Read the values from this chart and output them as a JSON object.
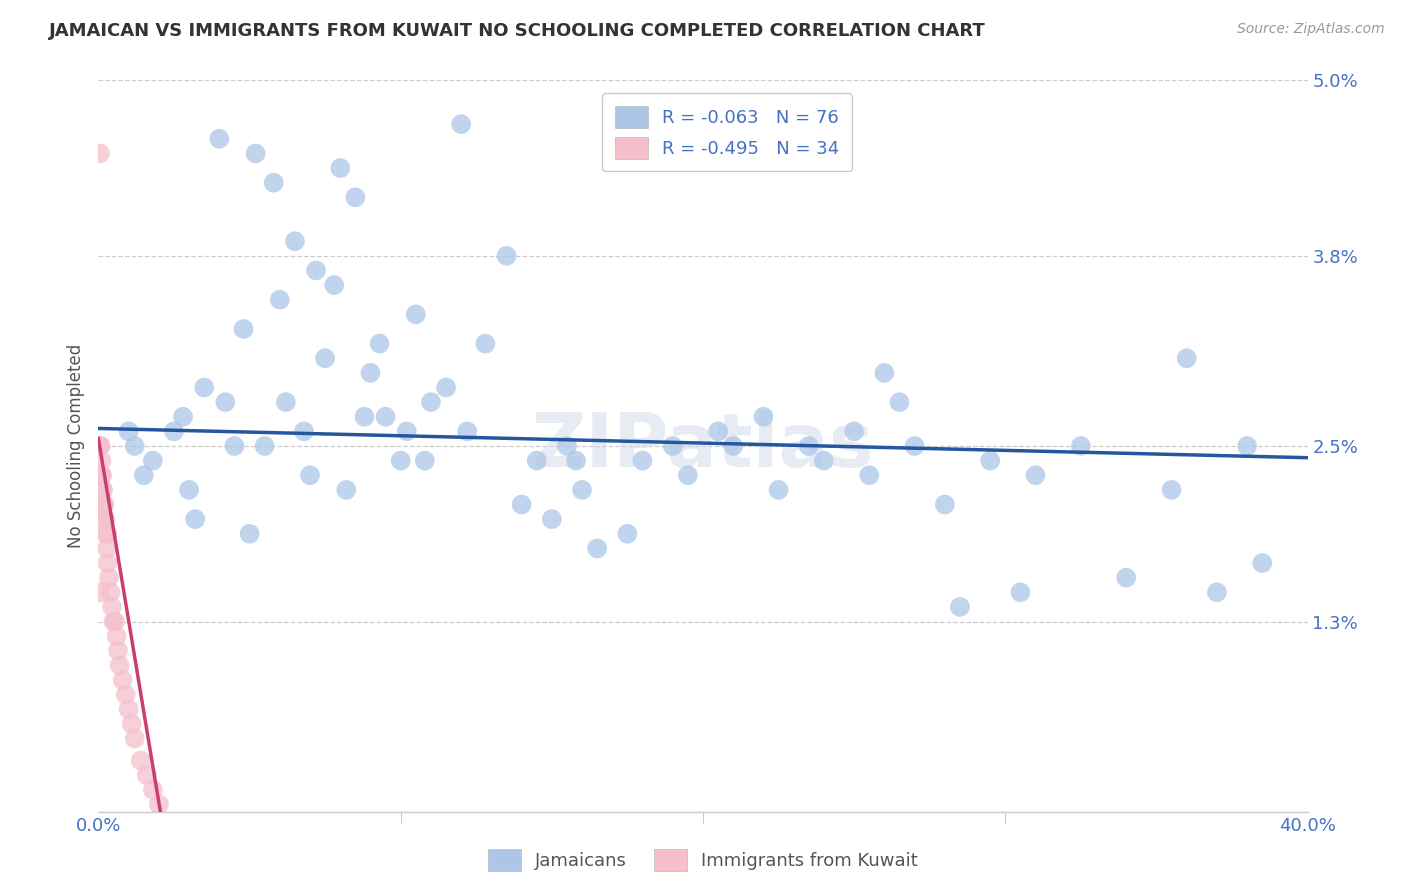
{
  "title": "JAMAICAN VS IMMIGRANTS FROM KUWAIT NO SCHOOLING COMPLETED CORRELATION CHART",
  "source": "Source: ZipAtlas.com",
  "ylabel": "No Schooling Completed",
  "legend1_label": "R = -0.063   N = 76",
  "legend2_label": "R = -0.495   N = 34",
  "legend_label1": "Jamaicans",
  "legend_label2": "Immigrants from Kuwait",
  "blue_color": "#adc6e8",
  "blue_line_color": "#2457a0",
  "pink_color": "#f5bfcc",
  "pink_line_color": "#c94070",
  "legend_text_color": "#4472c4",
  "title_color": "#333333",
  "axis_color": "#4472c4",
  "watermark": "ZIPatlas",
  "xmin": 0.0,
  "xmax": 40.0,
  "ymin": 0.0,
  "ymax": 5.0,
  "ytick_vals": [
    0.0,
    1.3,
    2.5,
    3.8,
    5.0
  ],
  "ytick_labels": [
    "",
    "1.3%",
    "2.5%",
    "3.8%",
    "5.0%"
  ],
  "xtick_vals": [
    0.0,
    40.0
  ],
  "xtick_labels": [
    "0.0%",
    "40.0%"
  ],
  "blue_line_x": [
    0.0,
    40.0
  ],
  "blue_line_y": [
    2.62,
    2.42
  ],
  "pink_line_x": [
    0.0,
    2.05
  ],
  "pink_line_y": [
    2.55,
    0.0
  ],
  "jamaicans_x": [
    1.2,
    2.5,
    4.0,
    5.2,
    5.8,
    6.5,
    7.2,
    8.0,
    8.5,
    9.3,
    1.8,
    3.5,
    4.8,
    6.0,
    7.8,
    9.0,
    10.5,
    11.0,
    12.0,
    13.5,
    1.5,
    2.8,
    4.2,
    5.5,
    6.8,
    7.5,
    8.8,
    10.0,
    11.5,
    12.8,
    1.0,
    3.0,
    4.5,
    6.2,
    7.0,
    9.5,
    10.8,
    12.2,
    14.0,
    15.5,
    14.5,
    16.0,
    17.5,
    19.0,
    20.5,
    22.0,
    23.5,
    25.0,
    26.5,
    28.0,
    15.0,
    16.5,
    18.0,
    19.5,
    21.0,
    22.5,
    24.0,
    25.5,
    27.0,
    29.5,
    31.0,
    32.5,
    34.0,
    35.5,
    37.0,
    38.5,
    3.2,
    5.0,
    8.2,
    10.2,
    15.8,
    26.0,
    36.0,
    38.0,
    28.5,
    30.5
  ],
  "jamaicans_y": [
    2.5,
    2.6,
    4.6,
    4.5,
    4.3,
    3.9,
    3.7,
    4.4,
    4.2,
    3.2,
    2.4,
    2.9,
    3.3,
    3.5,
    3.6,
    3.0,
    3.4,
    2.8,
    4.7,
    3.8,
    2.3,
    2.7,
    2.8,
    2.5,
    2.6,
    3.1,
    2.7,
    2.4,
    2.9,
    3.2,
    2.6,
    2.2,
    2.5,
    2.8,
    2.3,
    2.7,
    2.4,
    2.6,
    2.1,
    2.5,
    2.4,
    2.2,
    1.9,
    2.5,
    2.6,
    2.7,
    2.5,
    2.6,
    2.8,
    2.1,
    2.0,
    1.8,
    2.4,
    2.3,
    2.5,
    2.2,
    2.4,
    2.3,
    2.5,
    2.4,
    2.3,
    2.5,
    1.6,
    2.2,
    1.5,
    1.7,
    2.0,
    1.9,
    2.2,
    2.6,
    2.4,
    3.0,
    3.1,
    2.5,
    1.4,
    1.5
  ],
  "kuwait_x": [
    0.05,
    0.08,
    0.1,
    0.12,
    0.15,
    0.18,
    0.2,
    0.22,
    0.25,
    0.28,
    0.3,
    0.35,
    0.4,
    0.45,
    0.5,
    0.55,
    0.6,
    0.65,
    0.7,
    0.8,
    0.9,
    1.0,
    1.1,
    1.2,
    1.4,
    1.6,
    1.8,
    2.0,
    0.05,
    0.1,
    0.15,
    0.2,
    0.3,
    0.05
  ],
  "kuwait_y": [
    4.5,
    2.5,
    2.4,
    2.3,
    2.2,
    2.1,
    2.0,
    2.0,
    1.9,
    1.8,
    1.7,
    1.6,
    1.5,
    1.4,
    1.3,
    1.3,
    1.2,
    1.1,
    1.0,
    0.9,
    0.8,
    0.7,
    0.6,
    0.5,
    0.35,
    0.25,
    0.15,
    0.05,
    2.5,
    2.3,
    2.2,
    2.1,
    1.9,
    1.5
  ]
}
